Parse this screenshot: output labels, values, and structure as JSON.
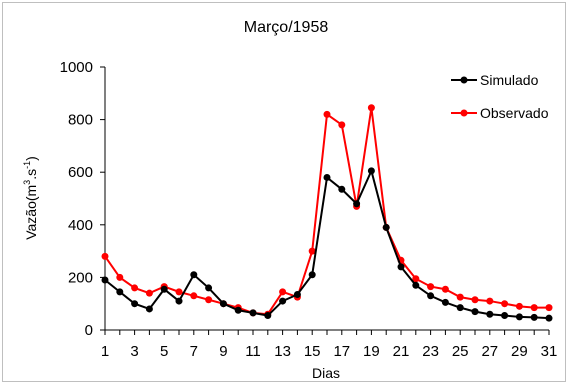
{
  "chart_data": {
    "type": "line",
    "title": "Março/1958",
    "xlabel": "Dias",
    "ylabel_main": "Vazão(m",
    "ylabel_sup1": "3",
    "ylabel_mid": ".s",
    "ylabel_sup2": "-1",
    "ylabel_end": ")",
    "x": [
      1,
      2,
      3,
      4,
      5,
      6,
      7,
      8,
      9,
      10,
      11,
      12,
      13,
      14,
      15,
      16,
      17,
      18,
      19,
      20,
      21,
      22,
      23,
      24,
      25,
      26,
      27,
      28,
      29,
      30,
      31
    ],
    "x_tick_labels": [
      "1",
      "3",
      "5",
      "7",
      "9",
      "11",
      "13",
      "15",
      "17",
      "19",
      "21",
      "23",
      "25",
      "27",
      "29",
      "31"
    ],
    "x_ticks": [
      1,
      3,
      5,
      7,
      9,
      11,
      13,
      15,
      17,
      19,
      21,
      23,
      25,
      27,
      29,
      31
    ],
    "xlim": [
      1,
      31
    ],
    "ylim": [
      0,
      1000
    ],
    "y_ticks": [
      0,
      200,
      400,
      600,
      800,
      1000
    ],
    "y_tick_labels": [
      "0",
      "200",
      "400",
      "600",
      "800",
      "1000"
    ],
    "grid": false,
    "legend_position": "top-right",
    "series": [
      {
        "name": "Simulado",
        "color": "#000000",
        "values": [
          190,
          145,
          100,
          80,
          155,
          110,
          210,
          160,
          100,
          75,
          65,
          55,
          110,
          135,
          210,
          580,
          535,
          480,
          605,
          390,
          240,
          170,
          130,
          105,
          85,
          70,
          60,
          55,
          50,
          48,
          45
        ]
      },
      {
        "name": "Observado",
        "color": "#ff0000",
        "values": [
          280,
          200,
          160,
          140,
          165,
          145,
          130,
          115,
          100,
          85,
          65,
          60,
          145,
          125,
          300,
          820,
          780,
          470,
          845,
          390,
          265,
          195,
          165,
          155,
          125,
          115,
          110,
          100,
          90,
          85,
          85
        ]
      }
    ]
  }
}
